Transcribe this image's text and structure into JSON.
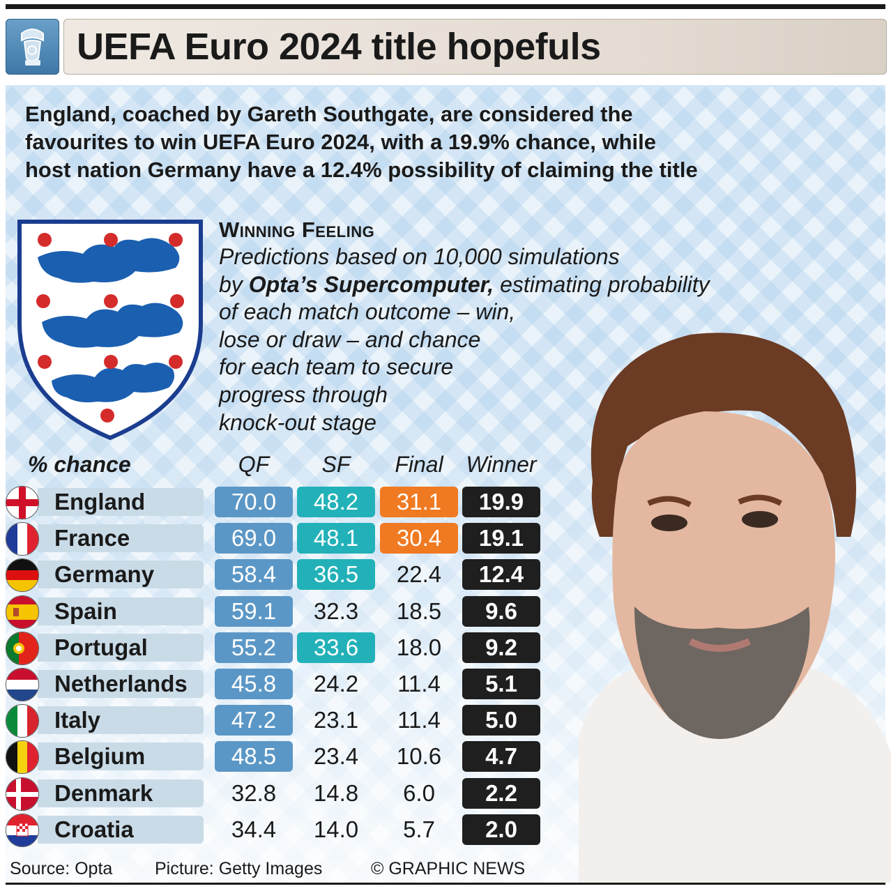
{
  "header": {
    "title": "UEFA Euro 2024 title hopefuls"
  },
  "intro": {
    "lines": [
      "England, coached by Gareth Southgate, are considered the",
      "favourites to win UEFA Euro 2024, with a 19.9% chance, while",
      "host nation Germany have a 12.4% possibility of claiming the title"
    ]
  },
  "panel": {
    "title": "Winning Feeling",
    "line1": "Predictions based on 10,000 simulations",
    "line2_pre": "by ",
    "line2_bold": "Opta’s Supercomputer,",
    "line2_post": " estimating probability",
    "line3": "of each match outcome – win,",
    "line4": "lose or draw – and chance",
    "line5": "for each team to secure",
    "line6": "progress through",
    "line7": "knock-out stage"
  },
  "colors": {
    "qf": "#5b97c6",
    "sf": "#22b1b8",
    "final": "#f07a22",
    "winner": "#1f1f1f",
    "band": "#c9dbe7"
  },
  "chart_data": {
    "type": "table",
    "columns": [
      "% chance",
      "QF",
      "SF",
      "Final",
      "Winner"
    ],
    "rows": [
      {
        "team": "England",
        "qf": "70.0",
        "sf": "48.2",
        "final": "31.1",
        "winner": "19.9",
        "hl": [
          1,
          1,
          1
        ]
      },
      {
        "team": "France",
        "qf": "69.0",
        "sf": "48.1",
        "final": "30.4",
        "winner": "19.1",
        "hl": [
          1,
          1,
          1
        ]
      },
      {
        "team": "Germany",
        "qf": "58.4",
        "sf": "36.5",
        "final": "22.4",
        "winner": "12.4",
        "hl": [
          1,
          1,
          0
        ]
      },
      {
        "team": "Spain",
        "qf": "59.1",
        "sf": "32.3",
        "final": "18.5",
        "winner": "9.6",
        "hl": [
          1,
          0,
          0
        ]
      },
      {
        "team": "Portugal",
        "qf": "55.2",
        "sf": "33.6",
        "final": "18.0",
        "winner": "9.2",
        "hl": [
          1,
          1,
          0
        ]
      },
      {
        "team": "Netherlands",
        "qf": "45.8",
        "sf": "24.2",
        "final": "11.4",
        "winner": "5.1",
        "hl": [
          1,
          0,
          0
        ]
      },
      {
        "team": "Italy",
        "qf": "47.2",
        "sf": "23.1",
        "final": "11.4",
        "winner": "5.0",
        "hl": [
          1,
          0,
          0
        ]
      },
      {
        "team": "Belgium",
        "qf": "48.5",
        "sf": "23.4",
        "final": "10.6",
        "winner": "4.7",
        "hl": [
          1,
          0,
          0
        ]
      },
      {
        "team": "Denmark",
        "qf": "32.8",
        "sf": "14.8",
        "final": "6.0",
        "winner": "2.2",
        "hl": [
          0,
          0,
          0
        ]
      },
      {
        "team": "Croatia",
        "qf": "34.4",
        "sf": "14.0",
        "final": "5.7",
        "winner": "2.0",
        "hl": [
          0,
          0,
          0
        ]
      }
    ]
  },
  "flags": [
    "england-flag-icon",
    "france-flag-icon",
    "germany-flag-icon",
    "spain-flag-icon",
    "portugal-flag-icon",
    "netherlands-flag-icon",
    "italy-flag-icon",
    "belgium-flag-icon",
    "denmark-flag-icon",
    "croatia-flag-icon"
  ],
  "footer": {
    "source": "Source: Opta",
    "picture": "Picture: Getty Images",
    "credit": "© GRAPHIC NEWS"
  }
}
